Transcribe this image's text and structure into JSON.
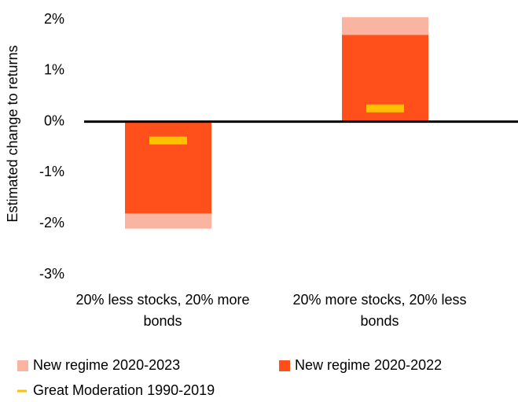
{
  "chart_data": {
    "type": "bar",
    "ylabel": "Estimated change to returns",
    "categories": [
      "20% less stocks, 20% more bonds",
      "20% more stocks, 20% less bonds"
    ],
    "series": [
      {
        "name": "New regime 2020-2023",
        "color": "#f9b5a1",
        "values": [
          -2.1,
          2.05
        ],
        "mark": "bar"
      },
      {
        "name": "New regime 2020-2022",
        "color": "#ff4f1a",
        "values": [
          -1.8,
          1.7
        ],
        "mark": "bar"
      },
      {
        "name": "Great Moderation 1990-2019",
        "color": "#ffc000",
        "values": [
          -0.37,
          0.26
        ],
        "mark": "dash"
      }
    ],
    "ylim": [
      -3,
      2
    ],
    "yticks": [
      {
        "value": -3,
        "label": "-3%"
      },
      {
        "value": -2,
        "label": "-2%"
      },
      {
        "value": -1,
        "label": "-1%"
      },
      {
        "value": 0,
        "label": "0%"
      },
      {
        "value": 1,
        "label": "1%"
      },
      {
        "value": 2,
        "label": "2%"
      }
    ],
    "grid": false
  }
}
